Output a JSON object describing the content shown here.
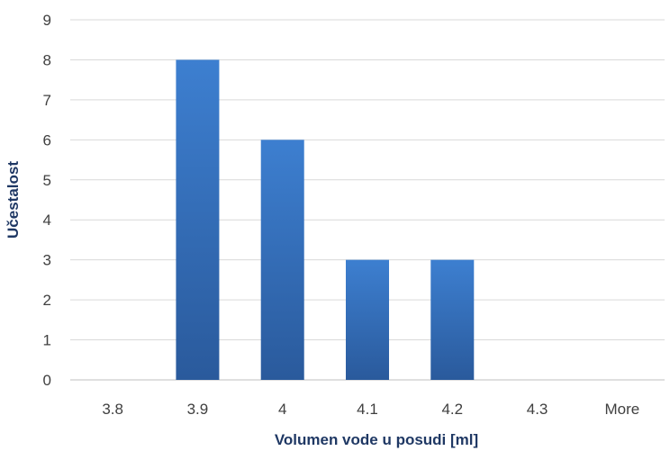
{
  "chart_data": {
    "type": "bar",
    "categories": [
      "3.8",
      "3.9",
      "4",
      "4.1",
      "4.2",
      "4.3",
      "More"
    ],
    "values": [
      0,
      8,
      6,
      3,
      3,
      0,
      0
    ],
    "ylim": [
      0,
      9
    ],
    "yticks": [
      "0",
      "1",
      "2",
      "3",
      "4",
      "5",
      "6",
      "7",
      "8",
      "9"
    ],
    "xlabel": "Volumen vode u posudi [ml]",
    "ylabel": "Učestalost",
    "grid": true,
    "legend": "none",
    "colors": {
      "bar_top": "#3d7fd0",
      "bar_bottom": "#2a5a9c",
      "grid": "#d9d9d9",
      "axis_title": "#1f3864",
      "tick_text": "#404040"
    }
  }
}
